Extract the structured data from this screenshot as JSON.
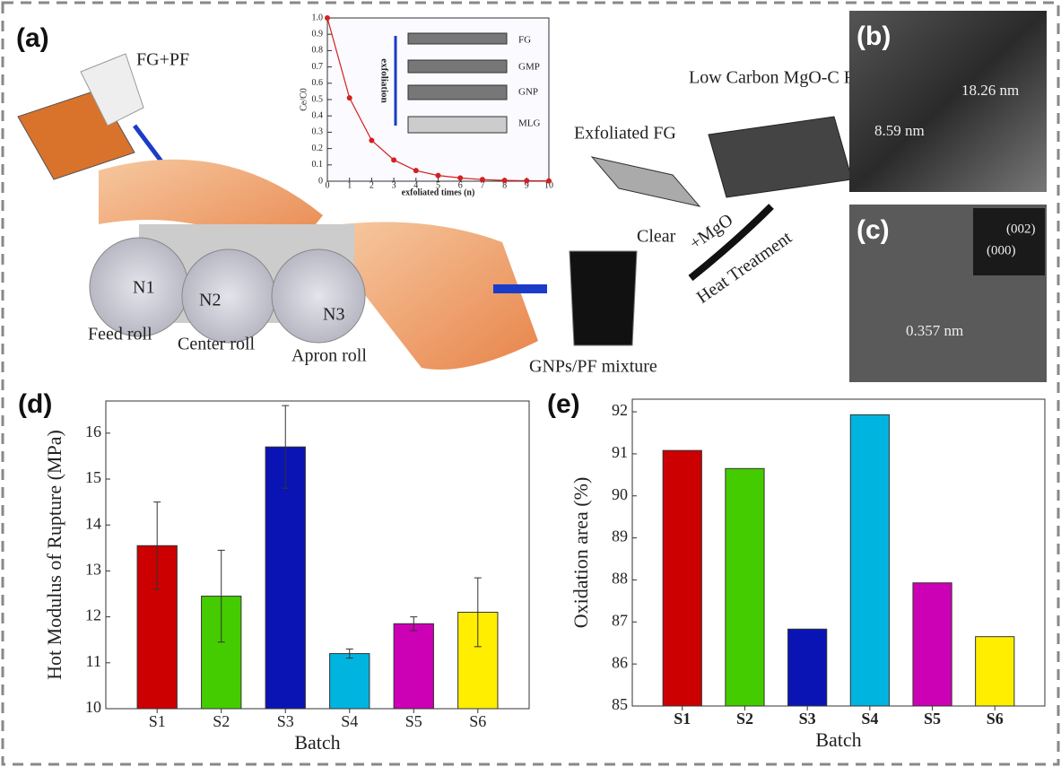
{
  "panel_labels": [
    "(a)",
    "(b)",
    "(c)",
    "(d)",
    "(e)"
  ],
  "diagram": {
    "feed": "FG+PF",
    "rolls": [
      "N1",
      "N2",
      "N3"
    ],
    "roll_names": [
      "Feed roll",
      "Center roll",
      "Apron roll"
    ],
    "mixture": "GNPs/PF mixture",
    "clear": "Clear",
    "exfoliated": "Exfoliated FG",
    "product": "Low Carbon MgO-C Refractories",
    "mgo": "+MgO",
    "heat": "Heat Treatment"
  },
  "micrographs": {
    "b": [
      "8.59 nm",
      "18.26 nm"
    ],
    "c": [
      "(002)",
      "(000)",
      "0.357 nm"
    ]
  },
  "chart_data": [
    {
      "type": "line",
      "xlabel": "exfoliated times (n)",
      "ylabel": "Ce/C0",
      "x": [
        0,
        1,
        2,
        3,
        4,
        5,
        6,
        7,
        8,
        9,
        10
      ],
      "values": [
        1.0,
        0.51,
        0.25,
        0.13,
        0.065,
        0.035,
        0.02,
        0.01,
        0.005,
        0.003,
        0.002
      ],
      "color": "#d42020",
      "xlim": [
        0,
        10
      ],
      "ylim": [
        0,
        1
      ],
      "xticks": [
        0,
        1,
        2,
        3,
        4,
        5,
        6,
        7,
        8,
        9,
        10
      ],
      "yticks": [
        0,
        0.1,
        0.2,
        0.3,
        0.4,
        0.5,
        0.6,
        0.7,
        0.8,
        0.9,
        {
          "value": 1,
          "label": "1.0"
        }
      ],
      "annotations": [
        "FG",
        "GMP",
        "GNP",
        "MLG",
        "exfoliation"
      ]
    },
    {
      "type": "bar",
      "xlabel": "Batch",
      "ylabel": "Hot Modulus of Rupture (MPa)",
      "categories": [
        "S1",
        "S2",
        "S3",
        "S4",
        "S5",
        "S6"
      ],
      "values": [
        13.55,
        12.45,
        15.7,
        11.2,
        11.85,
        12.1
      ],
      "errors": [
        0.95,
        1.0,
        0.9,
        0.1,
        0.15,
        0.75
      ],
      "colors": [
        "#cc0000",
        "#44cc00",
        "#0a14b4",
        "#00b4e0",
        "#cc00b4",
        "#ffee00"
      ],
      "ylim": [
        10,
        16.7
      ],
      "yticks": [
        10,
        11,
        12,
        13,
        14,
        15,
        16
      ]
    },
    {
      "type": "bar",
      "xlabel": "Batch",
      "ylabel": "Oxidation area (%)",
      "categories": [
        "S1",
        "S2",
        "S3",
        "S4",
        "S5",
        "S6"
      ],
      "values": [
        91.08,
        90.65,
        86.83,
        91.93,
        87.93,
        86.65
      ],
      "colors": [
        "#cc0000",
        "#44cc00",
        "#0a14b4",
        "#00b4e0",
        "#cc00b4",
        "#ffee00"
      ],
      "ylim": [
        85,
        92.3
      ],
      "yticks": [
        85,
        86,
        87,
        88,
        89,
        90,
        91,
        92
      ]
    }
  ]
}
